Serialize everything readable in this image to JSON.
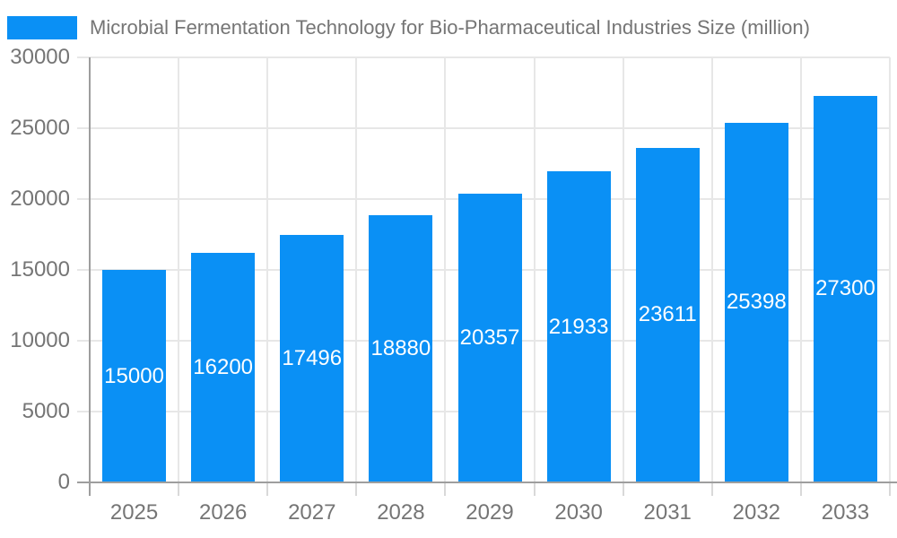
{
  "legend": {
    "label": "Microbial Fermentation Technology for Bio-Pharmaceutical Industries Size (million)"
  },
  "chart_data": {
    "type": "bar",
    "title": "Microbial Fermentation Technology for Bio-Pharmaceutical Industries Size (million)",
    "categories": [
      "2025",
      "2026",
      "2027",
      "2028",
      "2029",
      "2030",
      "2031",
      "2032",
      "2033"
    ],
    "values": [
      15000,
      16200,
      17496,
      18880,
      20357,
      21933,
      23611,
      25398,
      27300
    ],
    "value_labels": [
      "15000",
      "16200",
      "17496",
      "18880",
      "20357",
      "21933",
      "23611",
      "25398",
      "27300"
    ],
    "xlabel": "",
    "ylabel": "",
    "ylim": [
      0,
      30000
    ],
    "yticks": [
      0,
      5000,
      10000,
      15000,
      20000,
      25000,
      30000
    ],
    "ytick_labels": [
      "0",
      "5000",
      "10000",
      "15000",
      "20000",
      "25000",
      "30000"
    ],
    "grid": true,
    "legend_position": "top-left",
    "colors": {
      "bar": "#0a90f5",
      "value_label_text": "#ffffff",
      "axis_line": "#9e9e9e",
      "gridline": "#e7e7e7",
      "tick": "#d9d9d9",
      "label_text": "#757575",
      "background": "#ffffff"
    }
  }
}
